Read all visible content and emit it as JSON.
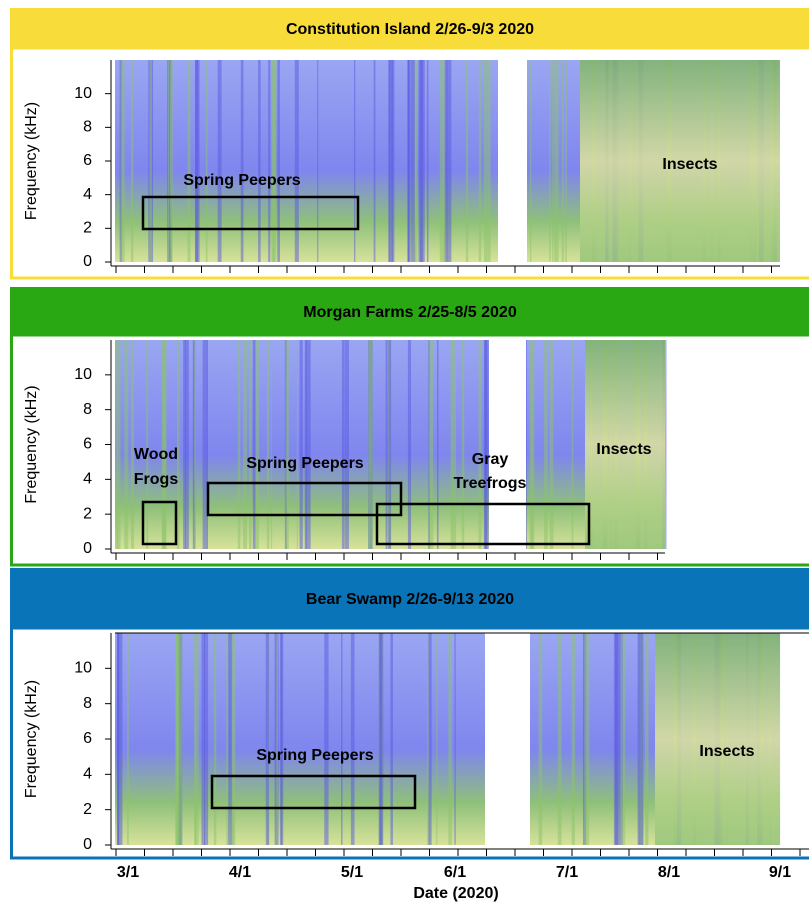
{
  "panels": [
    {
      "title": "Constitution Island 2/26-9/3 2020",
      "ylabel": "Frequency (kHz)",
      "ylim": [
        0,
        12
      ],
      "yticks": [
        0,
        2,
        4,
        6,
        8,
        10
      ],
      "annotations": [
        "Spring Peepers",
        "Insects"
      ]
    },
    {
      "title": "Morgan Farms 2/25-8/5 2020",
      "ylabel": "Frequency (kHz)",
      "ylim": [
        0,
        12
      ],
      "yticks": [
        0,
        2,
        4,
        6,
        8,
        10
      ],
      "annotations": [
        "Wood",
        "Frogs",
        "Spring Peepers",
        "Gray",
        "Treefrogs",
        "Insects"
      ]
    },
    {
      "title": "Bear Swamp 2/26-9/13 2020",
      "ylabel": "Frequency (kHz)",
      "ylim": [
        0,
        12
      ],
      "yticks": [
        0,
        2,
        4,
        6,
        8,
        10
      ],
      "annotations": [
        "Spring Peepers",
        "Insects"
      ]
    }
  ],
  "x_axis": {
    "ticks": [
      "3/1",
      "4/1",
      "5/1",
      "6/1",
      "7/1",
      "8/1",
      "9/1"
    ],
    "label": "Date (2020)"
  }
}
